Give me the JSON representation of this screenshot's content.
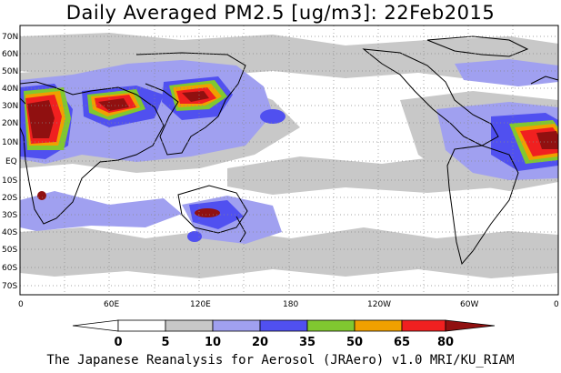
{
  "title": "Daily Averaged PM2.5 [ug/m3]: 22Feb2015",
  "footer": "The Japanese Reanalysis for Aerosol (JRAero) v1.0 MRI/KU_RIAM",
  "lat_labels": [
    "70N",
    "60N",
    "50N",
    "40N",
    "30N",
    "20N",
    "10N",
    "EQ",
    "10S",
    "20S",
    "30S",
    "40S",
    "50S",
    "60S",
    "70S"
  ],
  "lon_labels": [
    "0",
    "60E",
    "120E",
    "180",
    "120W",
    "60W",
    "0"
  ],
  "colorbar": {
    "labels": [
      "0",
      "5",
      "10",
      "20",
      "35",
      "50",
      "65",
      "80"
    ],
    "colors": [
      "#ffffff",
      "#c8c8c8",
      "#a0a0f0",
      "#5050f0",
      "#80c830",
      "#f0a000",
      "#f02020",
      "#901010"
    ]
  },
  "colors": {
    "ocean": "#ffffff",
    "gray": "#c8c8c8",
    "lightblue": "#a0a0f0",
    "blue": "#5050f0",
    "green": "#80c830",
    "orange": "#f0a000",
    "red": "#f02020",
    "darkred": "#901010"
  }
}
